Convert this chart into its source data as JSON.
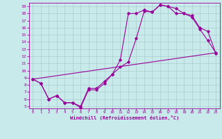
{
  "xlabel": "Windchill (Refroidissement éolien,°C)",
  "background_color": "#c8eaea",
  "line_color": "#990099",
  "grid_color": "#aacccc",
  "line1_x": [
    0,
    1,
    2,
    3,
    4,
    5,
    6,
    7,
    8,
    9,
    10,
    11,
    12,
    13,
    14,
    15,
    16,
    17,
    18,
    19,
    20,
    21,
    22,
    23
  ],
  "line1_y": [
    8.8,
    8.2,
    6.0,
    6.5,
    5.5,
    5.5,
    5.0,
    7.5,
    7.5,
    8.5,
    9.5,
    11.5,
    18.0,
    18.0,
    18.5,
    18.2,
    19.2,
    19.0,
    18.0,
    18.0,
    17.5,
    15.8,
    14.2,
    12.5
  ],
  "line2_x": [
    0,
    1,
    2,
    3,
    4,
    5,
    6,
    7,
    8,
    9,
    10,
    11,
    12,
    13,
    14,
    15,
    16,
    17,
    18,
    19,
    20,
    21,
    22,
    23
  ],
  "line2_y": [
    8.8,
    8.2,
    6.0,
    6.5,
    5.5,
    5.5,
    4.8,
    7.3,
    7.3,
    8.2,
    9.5,
    10.5,
    11.2,
    14.5,
    18.3,
    18.2,
    19.2,
    19.0,
    18.7,
    18.0,
    17.7,
    16.0,
    15.5,
    12.4
  ],
  "line3_x": [
    0,
    23
  ],
  "line3_y": [
    8.8,
    12.5
  ],
  "xlim": [
    -0.5,
    23.5
  ],
  "ylim": [
    4.7,
    19.5
  ],
  "yticks": [
    5,
    6,
    7,
    8,
    9,
    10,
    11,
    12,
    13,
    14,
    15,
    16,
    17,
    18,
    19
  ],
  "xticks": [
    0,
    1,
    2,
    3,
    4,
    5,
    6,
    7,
    8,
    9,
    10,
    11,
    12,
    13,
    14,
    15,
    16,
    17,
    18,
    19,
    20,
    21,
    22,
    23
  ]
}
